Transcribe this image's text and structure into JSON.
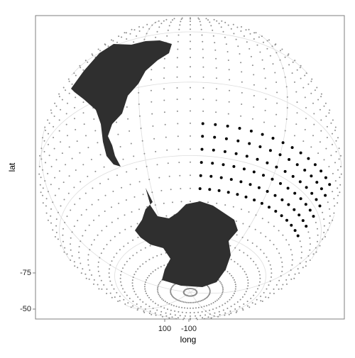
{
  "chart_data": {
    "type": "map",
    "x_label": "long",
    "y_label": "lat",
    "xticks": [
      100,
      -100
    ],
    "yticks": [
      -75,
      -50
    ]
  }
}
